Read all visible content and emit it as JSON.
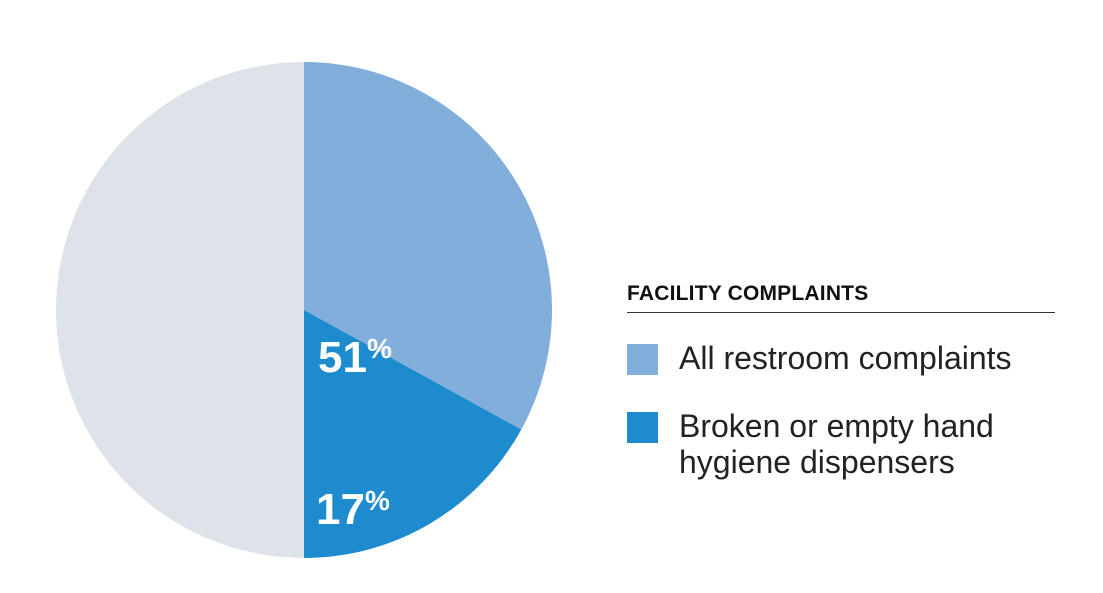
{
  "chart_data": {
    "type": "pie",
    "legend_title": "FACILITY COMPLAINTS",
    "legend_position": "right",
    "slices": [
      {
        "label": "All restroom complaints",
        "value": 51,
        "display_value": "51",
        "unit": "%",
        "color": "#82aedb"
      },
      {
        "label": "Broken or empty hand\nhygiene dispensers",
        "value": 17,
        "display_value": "17",
        "unit": "%",
        "color": "#1f8bcf"
      }
    ],
    "remainder_color": "#dde3e8"
  }
}
